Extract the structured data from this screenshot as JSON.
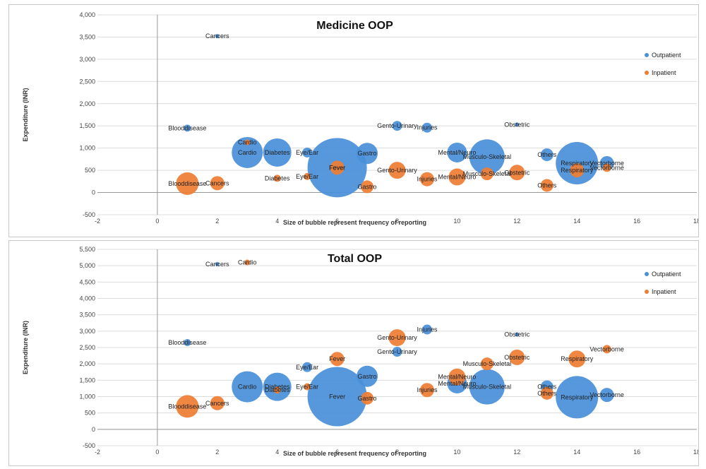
{
  "colors": {
    "outpatient": "#4a90d9",
    "inpatient": "#ee7d33"
  },
  "chart_data": [
    {
      "type": "scatter",
      "subtype": "bubble",
      "title": "Medicine OOP",
      "xlabel": "Size of bubble represent frequency of reporting",
      "ylabel": "Expenditure (INR)",
      "xlim": [
        -2,
        18
      ],
      "ylim": [
        -500,
        4000
      ],
      "xticks": [
        "-2",
        "0",
        "2",
        "4",
        "6",
        "8",
        "10",
        "12",
        "14",
        "16",
        "18"
      ],
      "yticks": [
        "-500",
        "0",
        "500",
        "1,000",
        "1,500",
        "2,000",
        "2,500",
        "3,000",
        "3,500",
        "4,000"
      ],
      "legend_position": "top-right",
      "grid": true,
      "series": [
        {
          "name": "Outpatient",
          "points": [
            {
              "label": "Blooddisease",
              "x": 1,
              "y": 1450,
              "size": 5
            },
            {
              "label": "Cancers",
              "x": 2,
              "y": 3520,
              "size": 3
            },
            {
              "label": "Cardio",
              "x": 3,
              "y": 900,
              "size": 22
            },
            {
              "label": "Diabetes",
              "x": 4,
              "y": 900,
              "size": 20
            },
            {
              "label": "Eye/Ear",
              "x": 5,
              "y": 900,
              "size": 7
            },
            {
              "label": "Fever",
              "x": 6,
              "y": 560,
              "size": 42
            },
            {
              "label": "Gastro",
              "x": 7,
              "y": 880,
              "size": 15
            },
            {
              "label": "Gento-Urinary",
              "x": 8,
              "y": 1500,
              "size": 7
            },
            {
              "label": "Injuries",
              "x": 9,
              "y": 1460,
              "size": 7
            },
            {
              "label": "Mental/Neuro",
              "x": 10,
              "y": 900,
              "size": 14
            },
            {
              "label": "Musculo-Skeletal",
              "x": 11,
              "y": 800,
              "size": 25
            },
            {
              "label": "Obstetric",
              "x": 12,
              "y": 1530,
              "size": 3
            },
            {
              "label": "Others",
              "x": 13,
              "y": 850,
              "size": 9
            },
            {
              "label": "Respiratory",
              "x": 14,
              "y": 660,
              "size": 30
            },
            {
              "label": "Vectorborne",
              "x": 15,
              "y": 660,
              "size": 10
            }
          ]
        },
        {
          "name": "Inpatient",
          "points": [
            {
              "label": "Blooddisease",
              "x": 1,
              "y": 200,
              "size": 16
            },
            {
              "label": "Cancers",
              "x": 2,
              "y": 210,
              "size": 10
            },
            {
              "label": "Cardio",
              "x": 3,
              "y": 1130,
              "size": 4
            },
            {
              "label": "Diabetes",
              "x": 4,
              "y": 320,
              "size": 5
            },
            {
              "label": "Eye/Ear",
              "x": 5,
              "y": 360,
              "size": 5
            },
            {
              "label": "Fever",
              "x": 6,
              "y": 560,
              "size": 10
            },
            {
              "label": "Gastro",
              "x": 7,
              "y": 130,
              "size": 9
            },
            {
              "label": "Gento-Urinary",
              "x": 8,
              "y": 500,
              "size": 12
            },
            {
              "label": "Injuries",
              "x": 9,
              "y": 300,
              "size": 10
            },
            {
              "label": "Mental/Neuro",
              "x": 10,
              "y": 350,
              "size": 12
            },
            {
              "label": "Musculo-Skeletal",
              "x": 11,
              "y": 420,
              "size": 9
            },
            {
              "label": "Obstetric",
              "x": 12,
              "y": 450,
              "size": 11
            },
            {
              "label": "Others",
              "x": 13,
              "y": 160,
              "size": 9
            },
            {
              "label": "Respiratory",
              "x": 14,
              "y": 500,
              "size": 10
            },
            {
              "label": "Vectorborne",
              "x": 15,
              "y": 560,
              "size": 6
            }
          ]
        }
      ]
    },
    {
      "type": "scatter",
      "subtype": "bubble",
      "title": "Total OOP",
      "xlabel": "Size of bubble represent frequency of reporting",
      "ylabel": "Expenditure (INR)",
      "xlim": [
        -2,
        18
      ],
      "ylim": [
        -500,
        5500
      ],
      "xticks": [
        "-2",
        "0",
        "2",
        "4",
        "6",
        "8",
        "10",
        "12",
        "14",
        "16",
        "18"
      ],
      "yticks": [
        "-500",
        "0",
        "500",
        "1,000",
        "1,500",
        "2,000",
        "2,500",
        "3,000",
        "3,500",
        "4,000",
        "4,500",
        "5,000",
        "5,500"
      ],
      "legend_position": "top-right",
      "grid": true,
      "series": [
        {
          "name": "Outpatient",
          "points": [
            {
              "label": "Blooddisease",
              "x": 1,
              "y": 2650,
              "size": 5
            },
            {
              "label": "Cancers",
              "x": 2,
              "y": 5050,
              "size": 3
            },
            {
              "label": "Cardio",
              "x": 3,
              "y": 1300,
              "size": 22
            },
            {
              "label": "Diabetes",
              "x": 4,
              "y": 1300,
              "size": 20
            },
            {
              "label": "Eye/Ear",
              "x": 5,
              "y": 1900,
              "size": 7
            },
            {
              "label": "Fever",
              "x": 6,
              "y": 1000,
              "size": 42
            },
            {
              "label": "Gastro",
              "x": 7,
              "y": 1620,
              "size": 15
            },
            {
              "label": "Gento-Urinary",
              "x": 8,
              "y": 2370,
              "size": 7
            },
            {
              "label": "Injuries",
              "x": 9,
              "y": 3050,
              "size": 7
            },
            {
              "label": "Mental/Neuro",
              "x": 10,
              "y": 1400,
              "size": 14
            },
            {
              "label": "Musculo-Skeletal",
              "x": 11,
              "y": 1300,
              "size": 25
            },
            {
              "label": "Obstetric",
              "x": 12,
              "y": 2900,
              "size": 3
            },
            {
              "label": "Others",
              "x": 13,
              "y": 1300,
              "size": 9
            },
            {
              "label": "Respiratory",
              "x": 14,
              "y": 980,
              "size": 30
            },
            {
              "label": "Vectorborne",
              "x": 15,
              "y": 1050,
              "size": 10
            }
          ]
        },
        {
          "name": "Inpatient",
          "points": [
            {
              "label": "Blooddisease",
              "x": 1,
              "y": 700,
              "size": 16
            },
            {
              "label": "Cancers",
              "x": 2,
              "y": 800,
              "size": 10
            },
            {
              "label": "Cardio",
              "x": 3,
              "y": 5100,
              "size": 4
            },
            {
              "label": "Diabetes",
              "x": 4,
              "y": 1200,
              "size": 5
            },
            {
              "label": "Eye/Ear",
              "x": 5,
              "y": 1300,
              "size": 5
            },
            {
              "label": "Fever",
              "x": 6,
              "y": 2150,
              "size": 10
            },
            {
              "label": "Gastro",
              "x": 7,
              "y": 950,
              "size": 9
            },
            {
              "label": "Gento-Urinary",
              "x": 8,
              "y": 2800,
              "size": 12
            },
            {
              "label": "Injuries",
              "x": 9,
              "y": 1200,
              "size": 10
            },
            {
              "label": "Mental/Neuro",
              "x": 10,
              "y": 1600,
              "size": 12
            },
            {
              "label": "Musculo-Skeletal",
              "x": 11,
              "y": 2000,
              "size": 9
            },
            {
              "label": "Obstetric",
              "x": 12,
              "y": 2200,
              "size": 11
            },
            {
              "label": "Others",
              "x": 13,
              "y": 1100,
              "size": 9
            },
            {
              "label": "Respiratory",
              "x": 14,
              "y": 2150,
              "size": 12
            },
            {
              "label": "Vectorborne",
              "x": 15,
              "y": 2450,
              "size": 6
            }
          ]
        }
      ]
    }
  ]
}
